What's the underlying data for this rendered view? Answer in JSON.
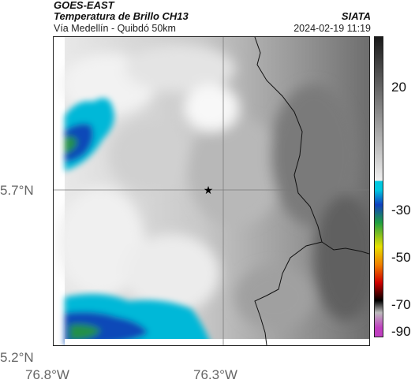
{
  "header": {
    "satellite": "GOES-EAST",
    "product": "Temperatura de Brillo CH13",
    "region": "Vía Medellín - Quibdó 50km",
    "brand": "SIATA",
    "datetime": "2024-02-19 11:19"
  },
  "map": {
    "lat_ticks": [
      "5.7°N",
      "5.2°N"
    ],
    "lon_ticks": [
      "76.8°W",
      "76.3°W"
    ],
    "marker_icon": "star-icon",
    "gridlines": true
  },
  "colorbar": {
    "ticks": [
      "20",
      "-30",
      "-50",
      "-70",
      "-90"
    ],
    "colors": {
      "warm_dark": "#1a1a1a",
      "warm_light": "#f0f0f0",
      "cyan": "#00c8e0",
      "blue": "#1040c0",
      "green": "#20a040",
      "yellow": "#e8e000",
      "orange": "#f08000",
      "red": "#d00000",
      "black": "#000000",
      "magenta": "#c040c0"
    }
  }
}
